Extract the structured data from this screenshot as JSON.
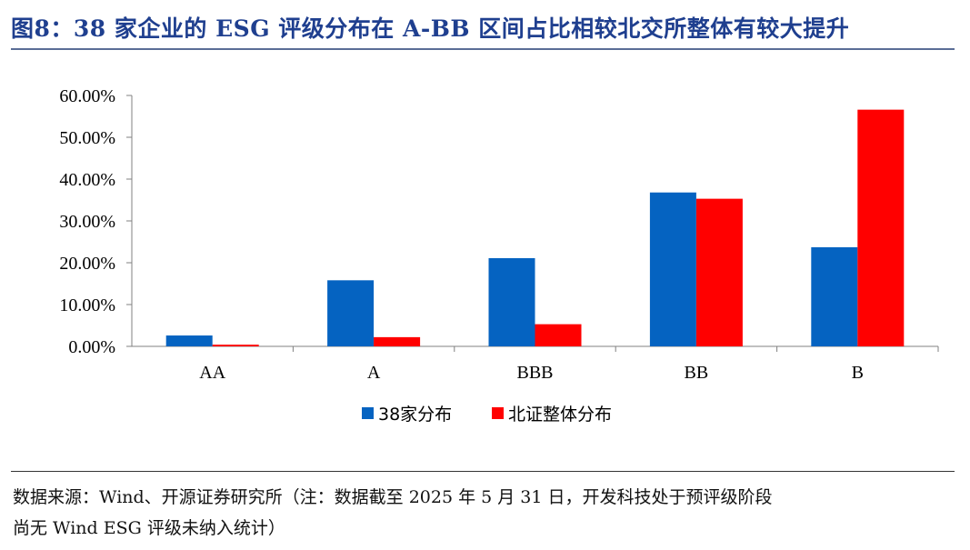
{
  "title": "图8：38 家企业的 ESG 评级分布在 A-BB 区间占比相较北交所整体有较大提升",
  "source_line1": "数据来源：Wind、开源证券研究所（注：数据截至 2025 年 5 月 31 日，开发科技处于预评级阶段",
  "source_line2": "尚无 Wind ESG 评级未纳入统计）",
  "colors": {
    "title": "#1f3f8f",
    "series1": "#0563c1",
    "series2": "#ff0000"
  },
  "chart_data": {
    "type": "bar",
    "categories": [
      "AA",
      "A",
      "BBB",
      "BB",
      "B"
    ],
    "series": [
      {
        "name": "38家分布",
        "values": [
          2.6,
          15.8,
          21.1,
          36.8,
          23.7
        ],
        "color": "#0563c1"
      },
      {
        "name": "北证整体分布",
        "values": [
          0.4,
          2.2,
          5.3,
          35.3,
          56.6
        ],
        "color": "#ff0000"
      }
    ],
    "yticks": [
      "0.00%",
      "10.00%",
      "20.00%",
      "30.00%",
      "40.00%",
      "50.00%",
      "60.00%"
    ],
    "ylim": [
      0,
      60
    ],
    "xlabel": "",
    "ylabel": "",
    "legend_position": "bottom-center",
    "grid": false
  }
}
